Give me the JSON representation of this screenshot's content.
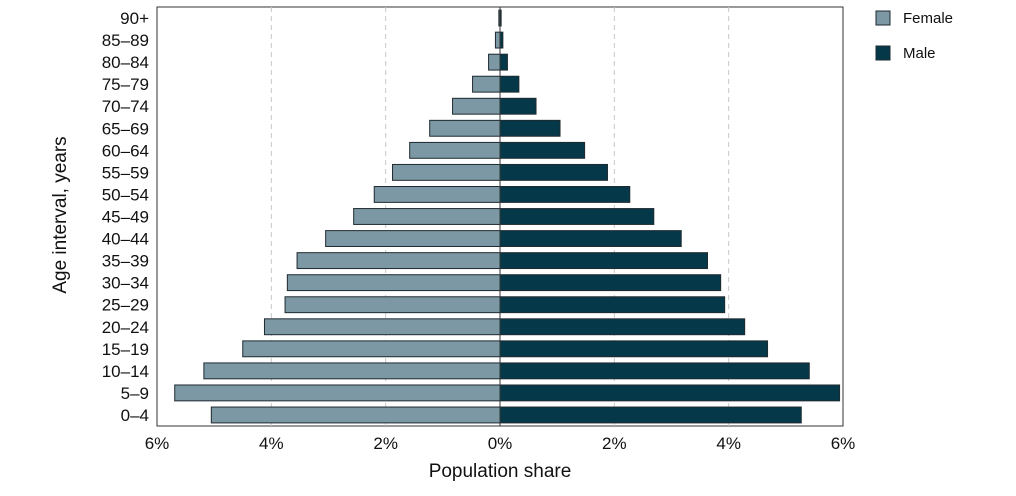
{
  "chart_data": {
    "type": "bar",
    "orientation": "horizontal",
    "categories": [
      "90+",
      "85–89",
      "80–84",
      "75–79",
      "70–74",
      "65–69",
      "60–64",
      "55–59",
      "50–54",
      "45–49",
      "40–44",
      "35–39",
      "30–34",
      "25–29",
      "20–24",
      "15–19",
      "10–14",
      "5–9",
      "0–4"
    ],
    "series": [
      {
        "name": "Female",
        "color": "#7b98a4",
        "values": [
          0.02,
          0.08,
          0.2,
          0.48,
          0.83,
          1.23,
          1.58,
          1.88,
          2.2,
          2.56,
          3.05,
          3.55,
          3.72,
          3.76,
          4.12,
          4.5,
          5.18,
          5.69,
          5.05
        ]
      },
      {
        "name": "Male",
        "color": "#05394a",
        "values": [
          0.02,
          0.05,
          0.13,
          0.33,
          0.63,
          1.05,
          1.48,
          1.88,
          2.27,
          2.69,
          3.17,
          3.63,
          3.86,
          3.93,
          4.28,
          4.68,
          5.41,
          5.94,
          5.27
        ]
      }
    ],
    "xlabel": "Population share",
    "ylabel": "Age interval, years",
    "xlim": [
      -6,
      6
    ],
    "xticks": [
      -6,
      -4,
      -2,
      0,
      2,
      4,
      6
    ],
    "xtick_labels": [
      "6%",
      "4%",
      "2%",
      "0%",
      "2%",
      "4%",
      "6%"
    ],
    "grid": "vertical dashed",
    "legend_position": "right-top",
    "bar_edge_color": "#1f2a30"
  }
}
